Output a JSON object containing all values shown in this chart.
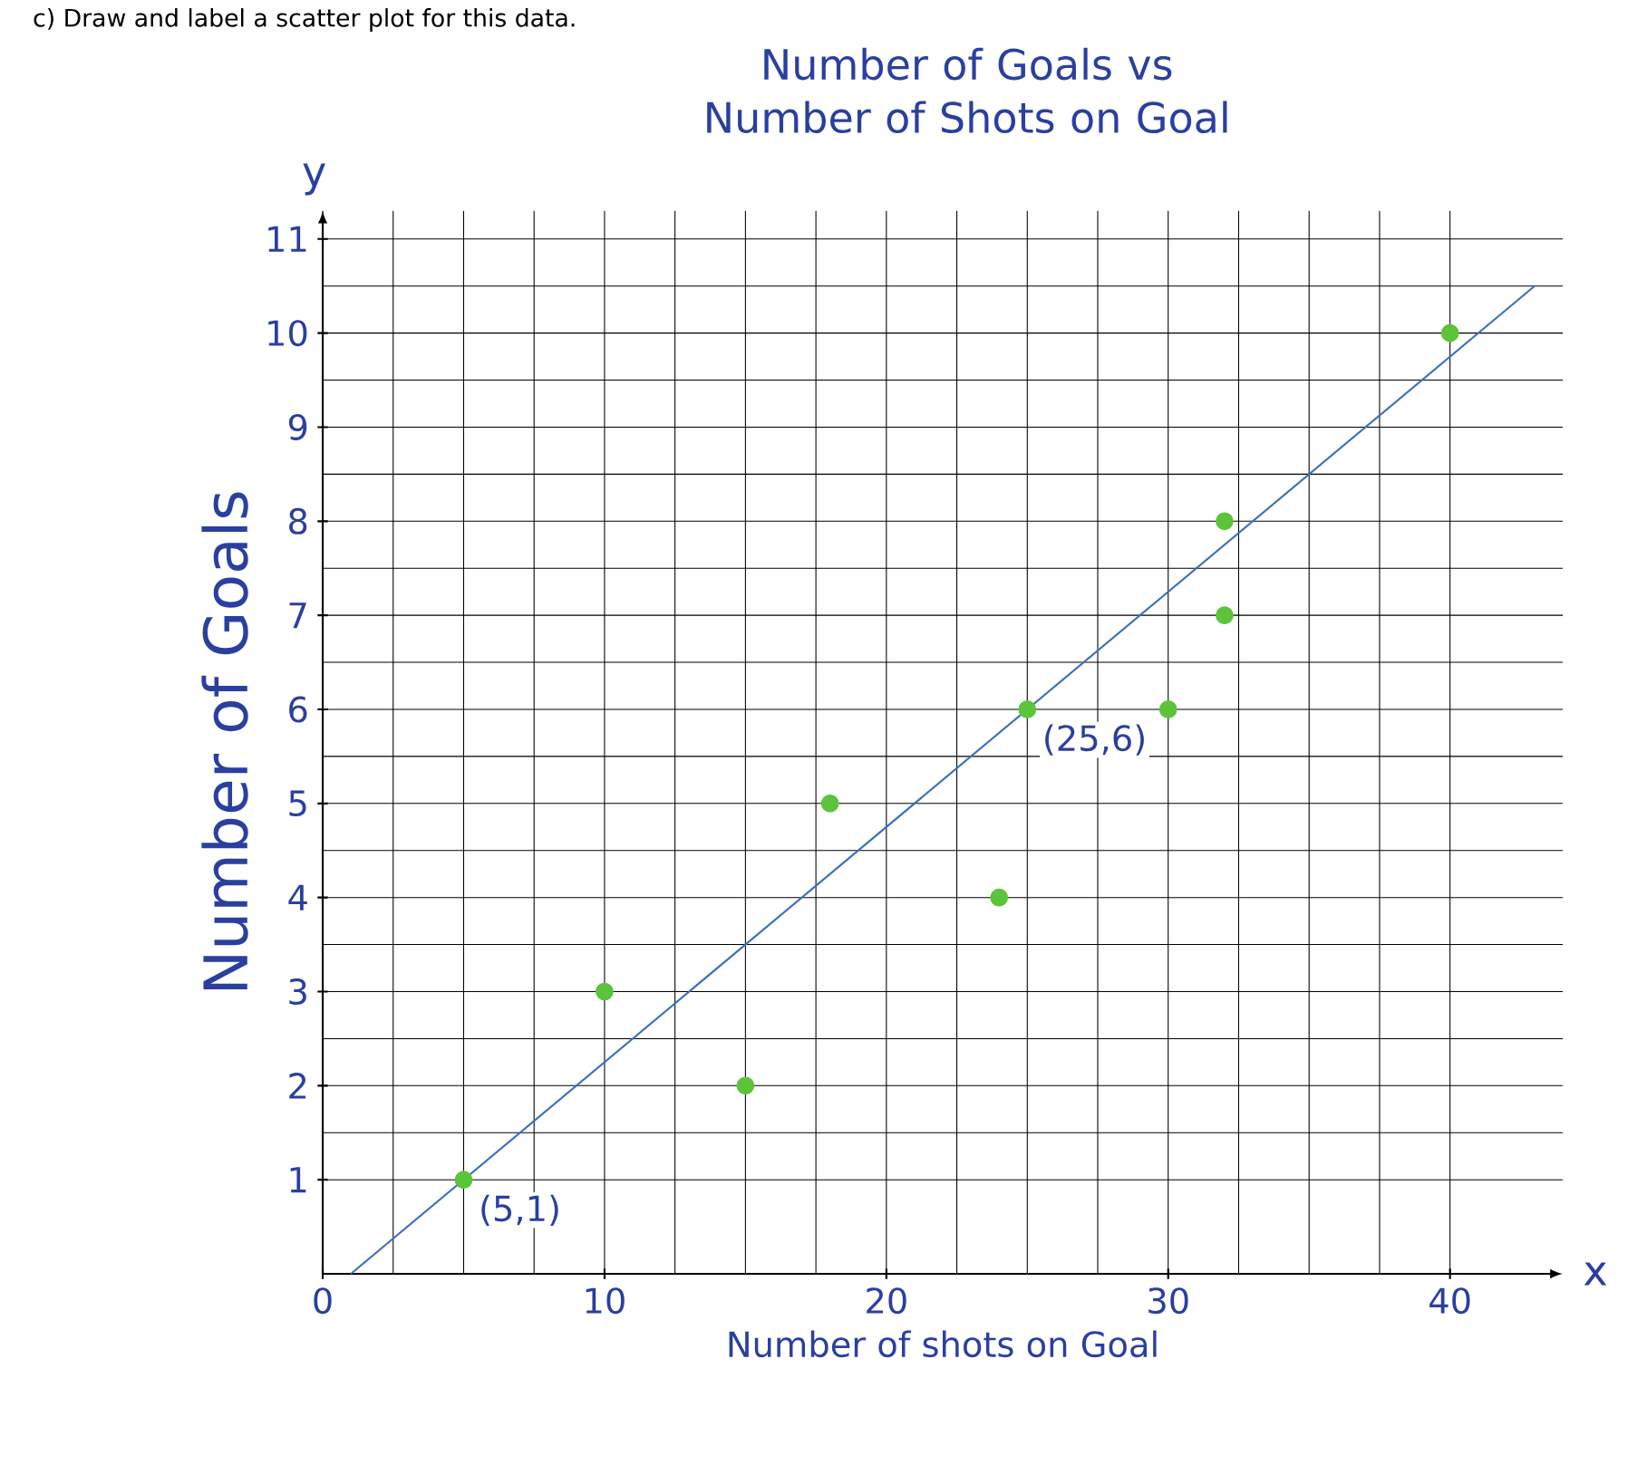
{
  "chart_data": {
    "type": "scatter",
    "title": "Number of Goals vs Number of Shots on Goal",
    "xlabel": "Number of shots on Goal",
    "ylabel": "Number of Goals",
    "annotations": [
      "c) Draw and label a scatter plot for this data.",
      "y",
      "x",
      {
        "text": "(5,1)",
        "x": 5,
        "y": 1
      },
      {
        "text": "(25,6)",
        "x": 25,
        "y": 6
      }
    ],
    "x": [
      5,
      10,
      15,
      18,
      24,
      25,
      30,
      32,
      32,
      40
    ],
    "series": [
      {
        "color": "#5cc43c",
        "marker": "circle",
        "values": [
          1,
          3,
          2,
          5,
          4,
          6,
          6,
          8,
          7,
          10
        ]
      },
      {
        "type": "line",
        "marker": "none",
        "color": "#3a6fc0",
        "x": [
          1,
          43
        ],
        "values": [
          0,
          10.5
        ]
      }
    ],
    "xlim": [
      0,
      44
    ],
    "ylim": [
      0,
      11.3
    ],
    "xticks": [
      0,
      10,
      20,
      30,
      40
    ],
    "yticks": [
      1,
      2,
      3,
      4,
      5,
      6,
      7,
      8,
      9,
      10,
      11
    ],
    "grid": true
  }
}
